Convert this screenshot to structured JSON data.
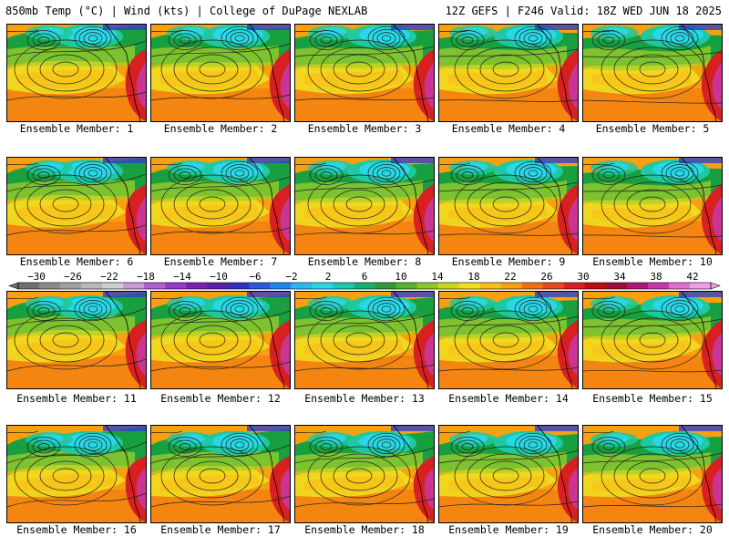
{
  "header": {
    "left": "850mb Temp (°C) | Wind (kts) | College of DuPage NEXLAB",
    "right": "12Z GEFS | F246 Valid: 18Z WED JUN 18 2025"
  },
  "caption_prefix": "Ensemble Member: ",
  "members": [
    "1",
    "2",
    "3",
    "4",
    "5",
    "6",
    "7",
    "8",
    "9",
    "10",
    "11",
    "12",
    "13",
    "14",
    "15",
    "16",
    "17",
    "18",
    "19",
    "20"
  ],
  "colorbar": {
    "tick_labels": [
      "−30",
      "−26",
      "−22",
      "−18",
      "−14",
      "−10",
      "−6",
      "−2",
      "2",
      "6",
      "10",
      "14",
      "18",
      "22",
      "26",
      "30",
      "34",
      "38",
      "42"
    ],
    "tick_values": [
      -30,
      -26,
      -22,
      -18,
      -14,
      -10,
      -6,
      -2,
      2,
      6,
      10,
      14,
      18,
      22,
      26,
      30,
      34,
      38,
      42
    ],
    "colors": [
      "#6e6e6e",
      "#8a8a8a",
      "#a0a0a0",
      "#b8b8b8",
      "#cfcfcf",
      "#c89bd6",
      "#b05ed0",
      "#9a36c8",
      "#7a1fb0",
      "#5a1ea8",
      "#3030c0",
      "#2c58e0",
      "#1e88f0",
      "#2ab8f0",
      "#28d8e6",
      "#1ec8b0",
      "#18b070",
      "#2c9a38",
      "#58b030",
      "#8cc828",
      "#c8d820",
      "#f0e020",
      "#f8c018",
      "#f8a010",
      "#f07010",
      "#e84818",
      "#d82020",
      "#b81010",
      "#a00c38",
      "#b01878",
      "#c838a8",
      "#e070d0",
      "#f0a0e0"
    ],
    "min": -32,
    "max": 44
  },
  "palette": {
    "deep_blue": "#3040c8",
    "blue": "#1ea0f0",
    "cyan": "#28d8e6",
    "teal": "#1ec8a0",
    "green": "#18a040",
    "yellow_green": "#a8d028",
    "yellow": "#f0e020",
    "gold": "#f8c018",
    "orange": "#f8a010",
    "dark_orange": "#f07010",
    "red": "#d82020",
    "magenta": "#c838a8"
  }
}
